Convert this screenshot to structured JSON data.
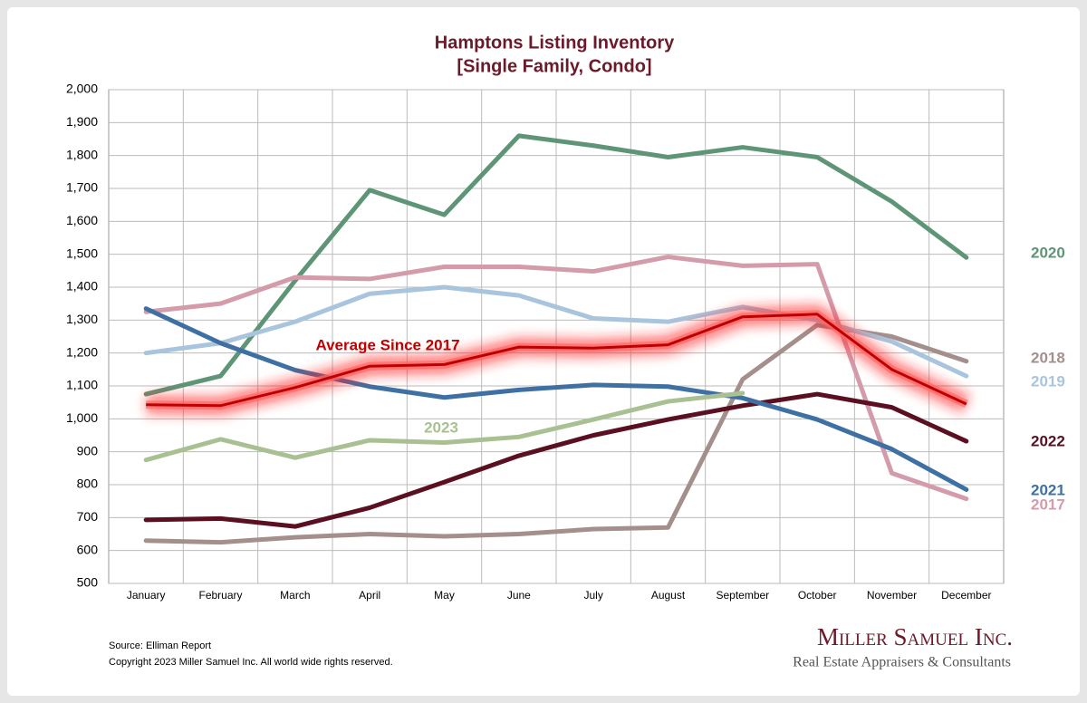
{
  "chart_data": {
    "type": "line",
    "title": "Hamptons Listing Inventory",
    "subtitle": "[Single Family, Condo]",
    "categories": [
      "January",
      "February",
      "March",
      "April",
      "May",
      "June",
      "July",
      "August",
      "September",
      "October",
      "November",
      "December"
    ],
    "ylim": [
      500,
      2000
    ],
    "yticks": [
      500,
      600,
      700,
      800,
      900,
      {
        "value": 1000,
        "label": "1,000"
      },
      {
        "value": 1100,
        "label": "1,100"
      },
      {
        "value": 1200,
        "label": "1,200"
      },
      {
        "value": 1300,
        "label": "1,300"
      },
      {
        "value": 1400,
        "label": "1,400"
      },
      {
        "value": 1500,
        "label": "1,500"
      },
      {
        "value": 1600,
        "label": "1,600"
      },
      {
        "value": 1700,
        "label": "1,700"
      },
      {
        "value": 1800,
        "label": "1,800"
      },
      {
        "value": 1900,
        "label": "1,900"
      },
      {
        "value": 2000,
        "label": "2,000"
      }
    ],
    "grid": true,
    "series": [
      {
        "name": "2020",
        "color": "#5f9577",
        "values": [
          1075,
          1130,
          1420,
          1695,
          1620,
          1860,
          1830,
          1795,
          1825,
          1795,
          1660,
          1490
        ]
      },
      {
        "name": "2018",
        "color": "#a48f8c",
        "values": [
          630,
          625,
          640,
          650,
          643,
          650,
          665,
          670,
          1120,
          1285,
          1250,
          1175
        ]
      },
      {
        "name": "2019",
        "color": "#a9c5dd",
        "values": [
          1200,
          1230,
          1295,
          1380,
          1400,
          1375,
          1305,
          1295,
          1340,
          1300,
          1235,
          1130
        ]
      },
      {
        "name": "2017",
        "color": "#d49bab",
        "values": [
          1325,
          1350,
          1430,
          1425,
          1462,
          1462,
          1448,
          1492,
          1465,
          1470,
          835,
          757
        ]
      },
      {
        "name": "2022",
        "color": "#5a1020",
        "values": [
          693,
          697,
          673,
          730,
          808,
          888,
          950,
          998,
          1040,
          1075,
          1035,
          932
        ]
      },
      {
        "name": "2021",
        "color": "#3f70a3",
        "values": [
          1335,
          1230,
          1148,
          1098,
          1065,
          1088,
          1103,
          1098,
          1063,
          998,
          908,
          785
        ]
      },
      {
        "name": "2023",
        "color": "#a9c092",
        "values": [
          875,
          938,
          882,
          935,
          928,
          945,
          998,
          1053,
          1078,
          null,
          null,
          null
        ]
      },
      {
        "name": "Average  Since 2017",
        "color": "#c00000",
        "glow": true,
        "values": [
          1043,
          1040,
          1095,
          1160,
          1165,
          1218,
          1215,
          1225,
          1310,
          1318,
          1150,
          1045
        ]
      }
    ],
    "source": "Source: Elliman Report",
    "copyright": "Copyright 2023 Miller Samuel Inc.  All world wide rights reserved.",
    "brand": {
      "name": "Miller Samuel Inc.",
      "tagline": "Real Estate Appraisers & Consultants"
    }
  }
}
